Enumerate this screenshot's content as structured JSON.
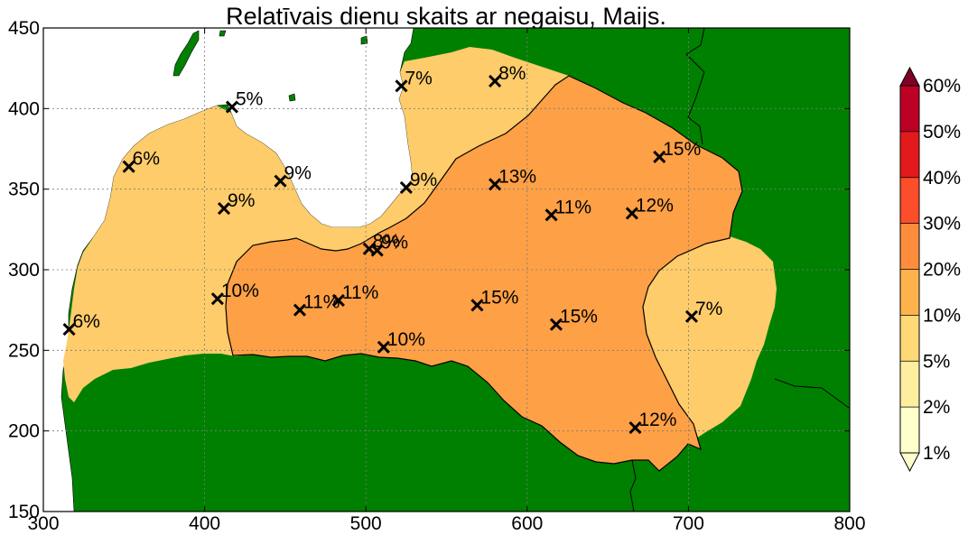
{
  "title": "Relatīvais dienu skaits ar negaisu, Maijs.",
  "axes": {
    "xlim": [
      300,
      800
    ],
    "ylim": [
      150,
      450
    ],
    "x_ticks": [
      300,
      400,
      500,
      600,
      700,
      800
    ],
    "y_ticks": [
      150,
      200,
      250,
      300,
      350,
      400,
      450
    ],
    "grid": true
  },
  "colors": {
    "land_outside": "#008000",
    "sea": "#ffffff",
    "class_5_10": "#fecc6a",
    "class_10_20": "#fda046",
    "contour_line": "#000000",
    "station_marker": "#000000"
  },
  "stations": [
    {
      "x": 316,
      "y": 263,
      "label": "6%"
    },
    {
      "x": 353,
      "y": 364,
      "label": "6%"
    },
    {
      "x": 417,
      "y": 401,
      "label": "5%"
    },
    {
      "x": 412,
      "y": 338,
      "label": "9%"
    },
    {
      "x": 447,
      "y": 355,
      "label": "9%"
    },
    {
      "x": 522,
      "y": 414,
      "label": "7%"
    },
    {
      "x": 580,
      "y": 417,
      "label": "8%"
    },
    {
      "x": 525,
      "y": 351,
      "label": "9%"
    },
    {
      "x": 580,
      "y": 353,
      "label": "13%"
    },
    {
      "x": 682,
      "y": 370,
      "label": "15%"
    },
    {
      "x": 615,
      "y": 334,
      "label": "11%"
    },
    {
      "x": 665,
      "y": 335,
      "label": "12%"
    },
    {
      "x": 502,
      "y": 313,
      "label": "8%"
    },
    {
      "x": 507,
      "y": 312,
      "label": "9%"
    },
    {
      "x": 408,
      "y": 282,
      "label": "10%"
    },
    {
      "x": 459,
      "y": 275,
      "label": "11%"
    },
    {
      "x": 483,
      "y": 281,
      "label": "11%"
    },
    {
      "x": 569,
      "y": 278,
      "label": "15%"
    },
    {
      "x": 618,
      "y": 266,
      "label": "15%"
    },
    {
      "x": 511,
      "y": 252,
      "label": "10%"
    },
    {
      "x": 702,
      "y": 271,
      "label": "7%"
    },
    {
      "x": 667,
      "y": 202,
      "label": "12%"
    }
  ],
  "colorbar": {
    "labels": [
      "1%",
      "2%",
      "5%",
      "10%",
      "20%",
      "30%",
      "40%",
      "50%",
      "60%"
    ],
    "colors": [
      "#ffffcc",
      "#ffeda0",
      "#fed976",
      "#feb24c",
      "#fd8d3c",
      "#fc4e2a",
      "#e31a1c",
      "#bd0026"
    ],
    "under_color": "#ffffcc",
    "over_color": "#800026"
  }
}
